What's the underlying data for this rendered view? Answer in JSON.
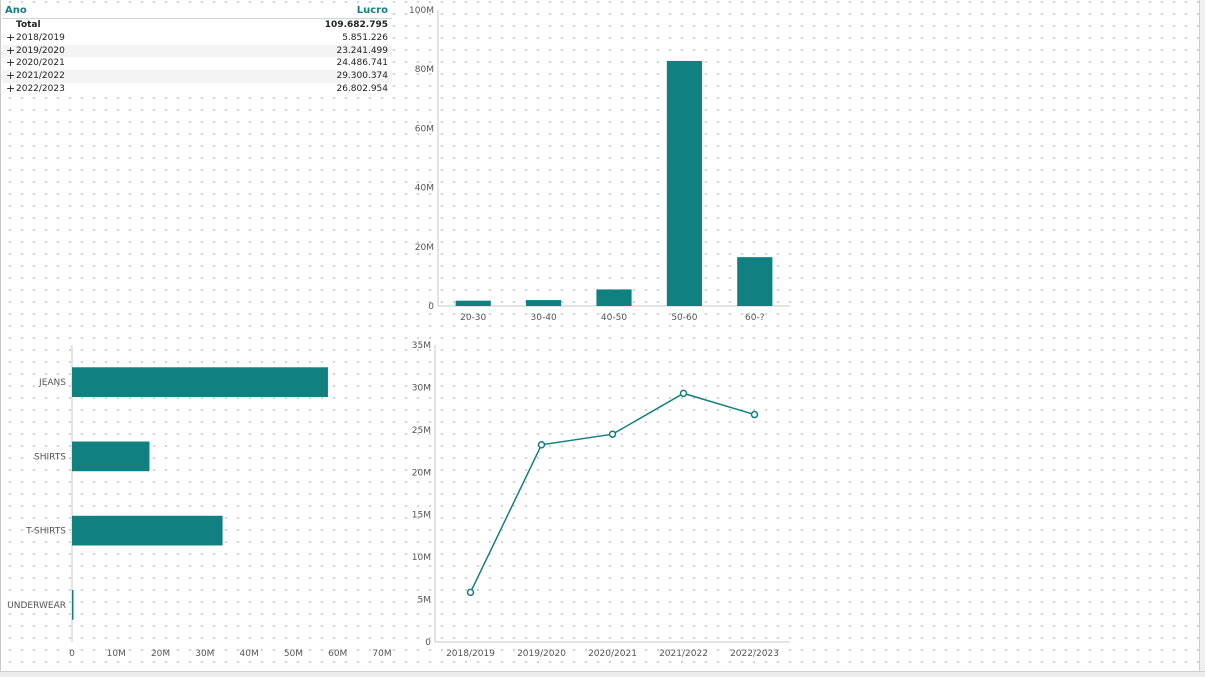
{
  "table": {
    "header": {
      "col1": "Ano",
      "col2": "Lucro"
    },
    "total": {
      "label": "Total",
      "value": "109.682.795"
    },
    "rows": [
      {
        "label": "2018/2019",
        "value": "5.851.226"
      },
      {
        "label": "2019/2020",
        "value": "23.241.499"
      },
      {
        "label": "2020/2021",
        "value": "24.486.741"
      },
      {
        "label": "2021/2022",
        "value": "29.300.374"
      },
      {
        "label": "2022/2023",
        "value": "26.802.954"
      }
    ],
    "expand_icon": "plus-icon"
  },
  "colors": {
    "accent": "#118080",
    "axis": "#c8c8c8",
    "text": "#555555"
  },
  "chart_data": [
    {
      "type": "bar",
      "orientation": "vertical",
      "categories": [
        "20-30",
        "30-40",
        "40-50",
        "50-60",
        "60-?"
      ],
      "values": [
        1.8,
        2.0,
        5.6,
        82.8,
        16.5
      ],
      "ylim": [
        0,
        100
      ],
      "yticks": [
        0,
        20,
        40,
        60,
        80,
        100
      ],
      "ytick_labels": [
        "0",
        "20M",
        "40M",
        "60M",
        "80M",
        "100M"
      ],
      "unit": "M",
      "grid": false,
      "legend": "none"
    },
    {
      "type": "bar",
      "orientation": "horizontal",
      "categories": [
        "JEANS",
        "SHIRTS",
        "T-SHIRTS",
        "UNDERWEAR"
      ],
      "values": [
        57.8,
        17.5,
        34.0,
        0.3
      ],
      "xlim": [
        0,
        70
      ],
      "xticks": [
        0,
        10,
        20,
        30,
        40,
        50,
        60,
        70
      ],
      "xtick_labels": [
        "0",
        "10M",
        "20M",
        "30M",
        "40M",
        "50M",
        "60M",
        "70M"
      ],
      "unit": "M",
      "grid": false,
      "legend": "none"
    },
    {
      "type": "line",
      "categories": [
        "2018/2019",
        "2019/2020",
        "2020/2021",
        "2021/2022",
        "2022/2023"
      ],
      "values": [
        5.851226,
        23.241499,
        24.486741,
        29.300374,
        26.802954
      ],
      "ylim": [
        0,
        35
      ],
      "yticks": [
        0,
        5,
        10,
        15,
        20,
        25,
        30,
        35
      ],
      "ytick_labels": [
        "0",
        "5M",
        "10M",
        "15M",
        "20M",
        "25M",
        "30M",
        "35M"
      ],
      "unit": "M",
      "markers": "circle",
      "grid": false,
      "legend": "none"
    }
  ]
}
